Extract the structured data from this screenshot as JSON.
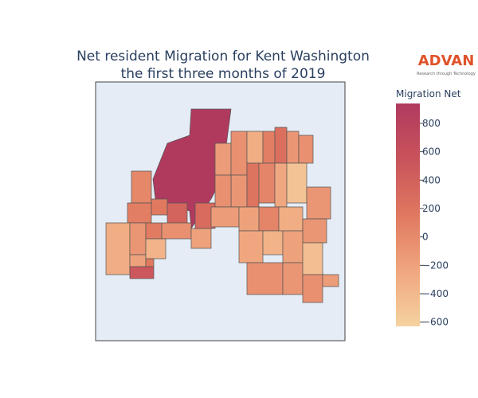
{
  "chart_data": {
    "type": "choropleth",
    "title": [
      "Net resident Migration for Kent Washington",
      "the first three months of 2019"
    ],
    "logo": {
      "name": "ADVAN",
      "tagline": "Research through Technology"
    },
    "colorbar_title": "Migration Net",
    "clim": [
      -630,
      940
    ],
    "colorscale": [
      "#f6d2a0",
      "#f0a67f",
      "#e0785f",
      "#c9535c",
      "#b03a5e"
    ],
    "cticks": [
      {
        "value": 800,
        "label": "800"
      },
      {
        "value": 600,
        "label": "600"
      },
      {
        "value": 400,
        "label": "400"
      },
      {
        "value": 200,
        "label": "200"
      },
      {
        "value": 0,
        "label": "0"
      },
      {
        "value": -200,
        "label": "−200"
      },
      {
        "value": -400,
        "label": "−400"
      },
      {
        "value": -600,
        "label": "−600"
      }
    ],
    "values": [
      940,
      30,
      150,
      380,
      100,
      -300,
      -100,
      120,
      -50,
      -200,
      -350,
      150,
      500,
      -200,
      300,
      -150,
      -50,
      -300,
      100,
      250,
      -100,
      -50,
      -100,
      200,
      50,
      -250,
      -500,
      -50,
      -100,
      -150,
      -200,
      50,
      -300,
      -100,
      -250,
      -350,
      -200,
      -50,
      -100,
      -450,
      -50,
      -150
    ]
  }
}
